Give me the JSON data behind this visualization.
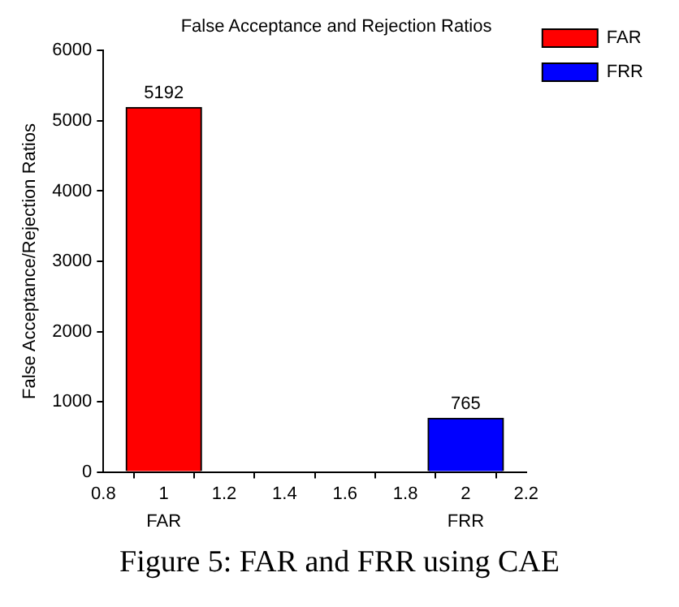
{
  "chart_data": {
    "type": "bar",
    "title": "False Acceptance and Rejection Ratios",
    "ylabel": "False Acceptance/Rejection Ratios",
    "series": [
      {
        "name": "FAR",
        "color": "#ff0000",
        "x": [
          1
        ],
        "values": [
          5192
        ]
      },
      {
        "name": "FRR",
        "color": "#0000ff",
        "x": [
          2
        ],
        "values": [
          765
        ]
      }
    ],
    "xlim": [
      0.8,
      2.2
    ],
    "xticks": [
      0.8,
      1,
      1.2,
      1.4,
      1.6,
      1.8,
      2,
      2.2
    ],
    "ylim": [
      0,
      6000
    ],
    "yticks": [
      0,
      1000,
      2000,
      3000,
      4000,
      5000,
      6000
    ],
    "data_labels": true,
    "grid": false,
    "legend": "top right",
    "annotations": [
      "FAR",
      "FRR",
      "Figure 5: FAR and FRR using CAE"
    ]
  }
}
